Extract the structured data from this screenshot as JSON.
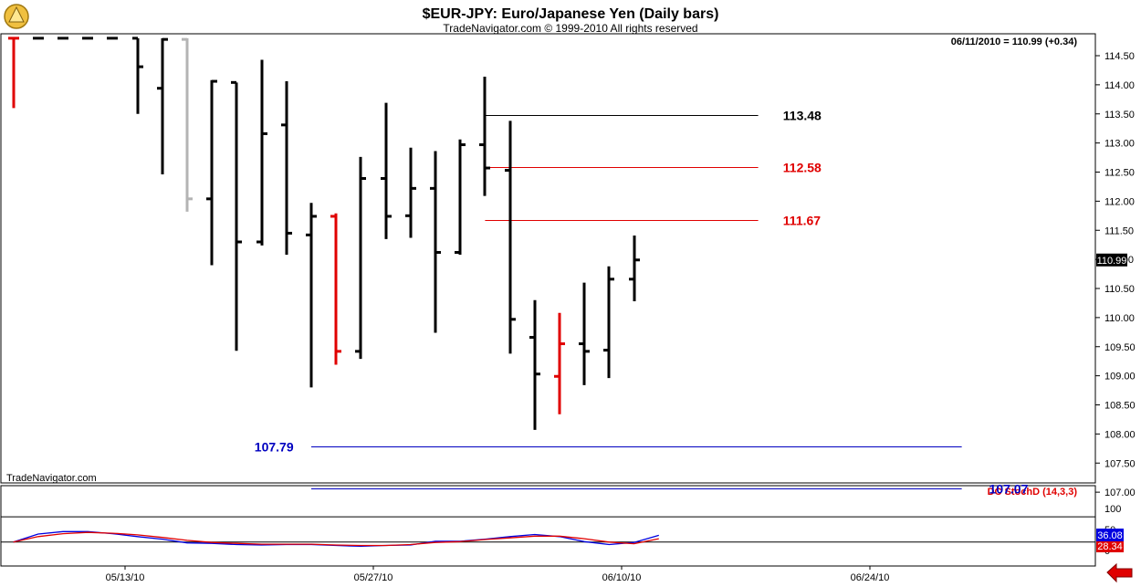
{
  "header": {
    "title": "$EUR-JPY:  Euro/Japanese Yen  (Daily bars)",
    "copyright": "TradeNavigator.com © 1999-2010 All rights reserved",
    "watermark": "TradeNavigator.com"
  },
  "chart_data": [
    {
      "type": "ohlc",
      "panel": "price",
      "readout": "06/11/2010 = 110.99 (+0.34)",
      "last_price_label": "110.99",
      "ylim": [
        106.8,
        114.8
      ],
      "yticks": [
        "114.50",
        "114.00",
        "113.50",
        "113.00",
        "112.50",
        "112.00",
        "111.50",
        "111.00",
        "110.50",
        "110.00",
        "109.50",
        "109.00",
        "108.50",
        "108.00",
        "107.50",
        "107.00"
      ],
      "x_labels": [
        "05/13/10",
        "05/27/10",
        "06/10/10",
        "06/24/10"
      ],
      "colors": {
        "up": "#000000",
        "down_highlight": "#e00000",
        "gray": "#b4b4b4"
      },
      "bars": [
        {
          "o": 114.8,
          "h": 114.8,
          "l": 113.6,
          "c": 114.8,
          "color": "#e00000"
        },
        {
          "o": 114.8,
          "h": 114.8,
          "l": 114.8,
          "c": 114.8,
          "color": "#000000"
        },
        {
          "o": 114.8,
          "h": 114.8,
          "l": 114.8,
          "c": 114.8,
          "color": "#000000"
        },
        {
          "o": 114.8,
          "h": 114.8,
          "l": 114.8,
          "c": 114.8,
          "color": "#000000"
        },
        {
          "o": 114.8,
          "h": 114.8,
          "l": 114.8,
          "c": 114.8,
          "color": "#000000"
        },
        {
          "o": 114.8,
          "h": 114.8,
          "l": 113.5,
          "c": 114.31,
          "color": "#000000"
        },
        {
          "o": 113.94,
          "h": 114.8,
          "l": 112.46,
          "c": 114.78,
          "color": "#000000"
        },
        {
          "o": 114.78,
          "h": 114.8,
          "l": 111.82,
          "c": 112.04,
          "color": "#b4b4b4"
        },
        {
          "o": 112.04,
          "h": 114.08,
          "l": 110.9,
          "c": 114.06,
          "color": "#000000"
        },
        {
          "o": 114.04,
          "h": 114.04,
          "l": 109.43,
          "c": 111.3,
          "color": "#000000"
        },
        {
          "o": 111.3,
          "h": 114.43,
          "l": 111.24,
          "c": 113.16,
          "color": "#000000"
        },
        {
          "o": 113.31,
          "h": 114.06,
          "l": 111.08,
          "c": 111.45,
          "color": "#000000"
        },
        {
          "o": 111.42,
          "h": 111.97,
          "l": 108.8,
          "c": 111.74,
          "color": "#000000"
        },
        {
          "o": 111.74,
          "h": 111.79,
          "l": 109.19,
          "c": 109.42,
          "color": "#e00000"
        },
        {
          "o": 109.42,
          "h": 112.76,
          "l": 109.29,
          "c": 112.39,
          "color": "#000000"
        },
        {
          "o": 112.39,
          "h": 113.69,
          "l": 111.35,
          "c": 111.74,
          "color": "#000000"
        },
        {
          "o": 111.75,
          "h": 112.92,
          "l": 111.37,
          "c": 112.22,
          "color": "#000000"
        },
        {
          "o": 112.22,
          "h": 112.86,
          "l": 109.74,
          "c": 111.12,
          "color": "#000000"
        },
        {
          "o": 111.12,
          "h": 113.06,
          "l": 111.08,
          "c": 112.97,
          "color": "#000000"
        },
        {
          "o": 112.97,
          "h": 114.14,
          "l": 112.09,
          "c": 112.57,
          "color": "#000000"
        },
        {
          "o": 112.53,
          "h": 113.38,
          "l": 109.38,
          "c": 109.97,
          "color": "#000000"
        },
        {
          "o": 109.66,
          "h": 110.3,
          "l": 108.07,
          "c": 109.03,
          "color": "#000000"
        },
        {
          "o": 108.99,
          "h": 110.08,
          "l": 108.34,
          "c": 109.55,
          "color": "#e00000"
        },
        {
          "o": 109.55,
          "h": 110.6,
          "l": 108.84,
          "c": 109.42,
          "color": "#000000"
        },
        {
          "o": 109.44,
          "h": 110.88,
          "l": 108.96,
          "c": 110.66,
          "color": "#000000"
        },
        {
          "o": 110.66,
          "h": 111.41,
          "l": 110.28,
          "c": 110.99,
          "color": "#000000"
        }
      ],
      "levels": [
        {
          "label": "113.48",
          "value": 113.48,
          "color": "#000000",
          "start_bar": 19,
          "end_bar": 30,
          "text_bar": 31
        },
        {
          "label": "112.58",
          "value": 112.58,
          "color": "#e00000",
          "start_bar": 19,
          "end_bar": 30,
          "text_bar": 31
        },
        {
          "label": "111.67",
          "value": 111.67,
          "color": "#e00000",
          "start_bar": 19,
          "end_bar": 30,
          "text_bar": 31
        },
        {
          "label": "107.79",
          "value": 107.79,
          "color": "#0000c0",
          "start_bar": 12,
          "end_bar": 38.2,
          "text_bar": 10.5,
          "text_side": "left"
        },
        {
          "label": "107.07",
          "value": 107.07,
          "color": "#0000c0",
          "start_bar": 12,
          "end_bar": 38.2,
          "text_bar": 39.3,
          "text_side": "right",
          "text_offset": 0.1
        }
      ]
    },
    {
      "type": "line",
      "panel": "indicator",
      "indicator_label": "DC StochD (14,3,3)",
      "ylim": [
        0,
        100
      ],
      "yticks": [
        "100",
        "50",
        "0"
      ],
      "reference_levels": [
        80,
        20
      ],
      "last_value_labels": [
        {
          "text": "28.34",
          "bg": "#e00000"
        },
        {
          "text": "36.08",
          "bg": "#0000e0"
        }
      ],
      "series": [
        {
          "color": "#0000e0",
          "values": [
            20,
            39,
            45,
            45,
            40,
            33,
            27,
            18,
            17,
            14,
            13,
            14,
            14,
            12,
            10,
            12,
            13,
            22,
            22,
            27,
            33,
            38,
            33,
            21,
            14,
            19,
            36
          ]
        },
        {
          "color": "#e00000",
          "values": [
            20,
            33,
            40,
            43,
            41,
            37,
            31,
            24,
            19,
            17,
            15,
            15,
            15,
            13,
            12,
            12,
            14,
            19,
            21,
            26,
            30,
            34,
            34,
            28,
            20,
            16,
            28
          ]
        }
      ]
    }
  ]
}
